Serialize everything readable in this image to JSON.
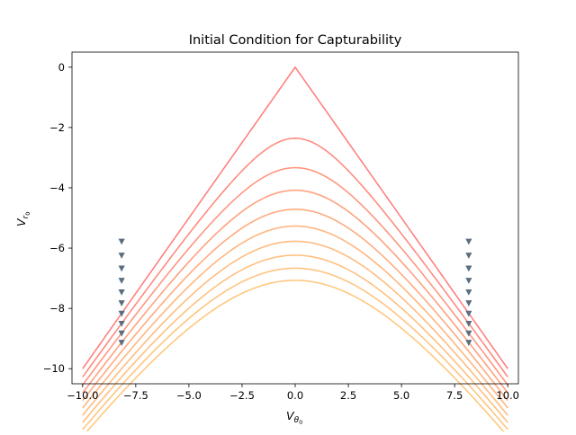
{
  "chart_data": {
    "type": "line",
    "title": "Initial Condition for Capturability",
    "xlabel": "V",
    "xlabel_sub": "θ",
    "xlabel_subsub": "0",
    "ylabel": "V",
    "ylabel_sub": "r",
    "ylabel_subsub": "0",
    "xlim": [
      -10.5,
      10.5
    ],
    "ylim": [
      -10.5,
      0.5
    ],
    "xticks": [
      -10.0,
      -7.5,
      -5.0,
      -2.5,
      0.0,
      2.5,
      5.0,
      7.5,
      10.0
    ],
    "xtick_labels": [
      "−10.0",
      "−7.5",
      "−5.0",
      "−2.5",
      "0.0",
      "2.5",
      "5.0",
      "7.5",
      "10.0"
    ],
    "yticks": [
      0,
      -2,
      -4,
      -6,
      -8,
      -10
    ],
    "ytick_labels": [
      "0",
      "−2",
      "−4",
      "−6",
      "−8",
      "−10"
    ],
    "grid": false,
    "legend": "none",
    "curve_formula": "y = -sqrt(x^2 + c^2)",
    "x_range": [
      -10,
      10
    ],
    "series": [
      {
        "c": 0.0,
        "color": "#ff8080"
      },
      {
        "c": 2.357,
        "color": "#ff8b80"
      },
      {
        "c": 3.333,
        "color": "#ff9680"
      },
      {
        "c": 4.082,
        "color": "#ffa17f"
      },
      {
        "c": 4.714,
        "color": "#ffab7f"
      },
      {
        "c": 5.27,
        "color": "#ffb67f"
      },
      {
        "c": 5.774,
        "color": "#ffbc80"
      },
      {
        "c": 6.236,
        "color": "#ffc080"
      },
      {
        "c": 6.667,
        "color": "#ffc580"
      },
      {
        "c": 7.071,
        "color": "#ffc880"
      }
    ],
    "markers": {
      "shape": "triangle-down",
      "color": "#5a6e80",
      "x_left": -8.165,
      "x_right": 8.165,
      "y": [
        -5.774,
        -6.236,
        -6.667,
        -7.071,
        -7.454,
        -7.817,
        -8.165,
        -8.498,
        -8.819,
        -9.129
      ]
    }
  }
}
